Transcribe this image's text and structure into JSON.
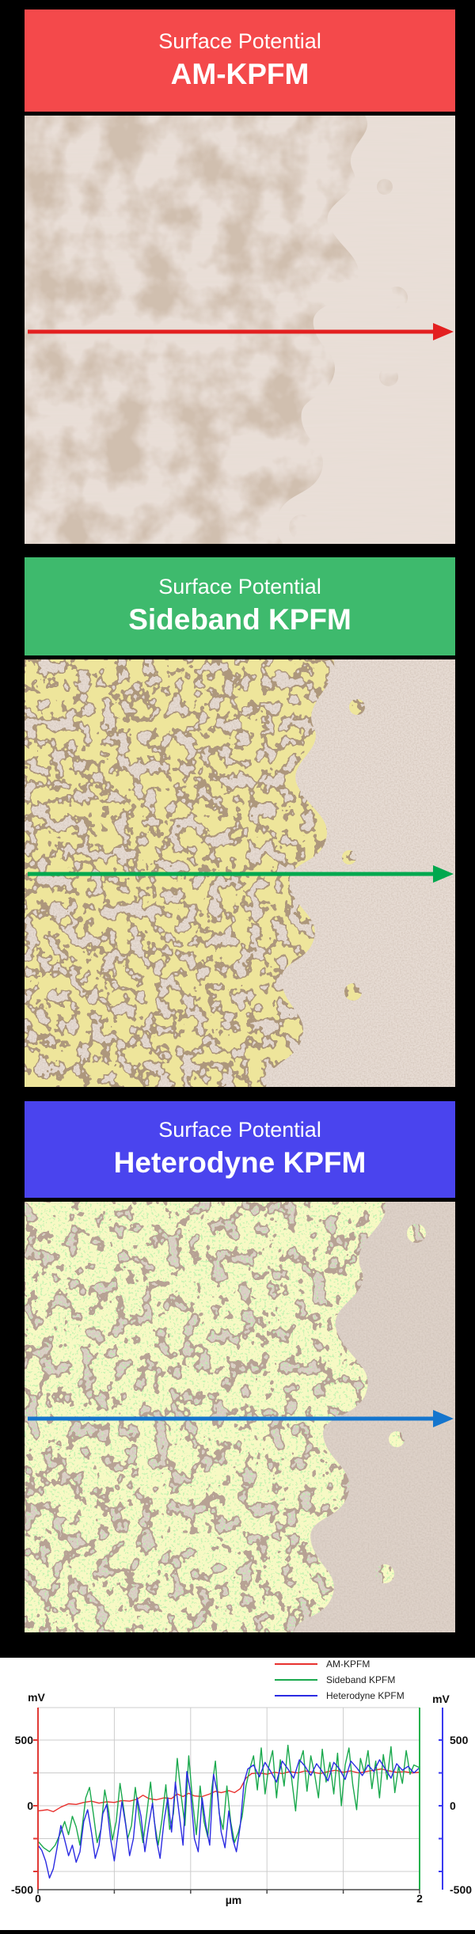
{
  "panels": [
    {
      "title_line1": "Surface Potential",
      "title_line2": "AM-KPFM",
      "banner_color": "#f4494b",
      "arrow_color": "#e32020"
    },
    {
      "title_line1": "Surface Potential",
      "title_line2": "Sideband KPFM",
      "banner_color": "#3eba6d",
      "arrow_color": "#00a84e"
    },
    {
      "title_line1": "Surface Potential",
      "title_line2": "Heterodyne KPFM",
      "banner_color": "#4a44ee",
      "arrow_color": "#1475cd"
    }
  ],
  "chart_data": {
    "type": "line",
    "xlabel": "µm",
    "ylabel_left": "mV",
    "ylabel_right": "mV",
    "xlim": [
      0,
      2
    ],
    "x_tick_labels": [
      "0",
      "2"
    ],
    "x_grid_step_um": 0.4,
    "y_tick_labels": [
      "500",
      "0",
      "-500"
    ],
    "y_grid_step_mv": 250,
    "ylim": [
      -650,
      760
    ],
    "grid": true,
    "legend_position": "top-right",
    "axis_colors": {
      "left_axis": "#e03a36",
      "right_axis": "#22b14c",
      "outer_right_axis": "#3a3af0",
      "baseline": "#4a4a4a"
    },
    "series": [
      {
        "name": "AM-KPFM",
        "color": "#e8312e",
        "points": [
          [
            0,
            -40
          ],
          [
            0.05,
            -30
          ],
          [
            0.08,
            -45
          ],
          [
            0.12,
            -10
          ],
          [
            0.16,
            15
          ],
          [
            0.2,
            10
          ],
          [
            0.24,
            25
          ],
          [
            0.28,
            35
          ],
          [
            0.32,
            20
          ],
          [
            0.36,
            30
          ],
          [
            0.4,
            25
          ],
          [
            0.44,
            40
          ],
          [
            0.48,
            35
          ],
          [
            0.52,
            50
          ],
          [
            0.55,
            80
          ],
          [
            0.58,
            55
          ],
          [
            0.62,
            45
          ],
          [
            0.66,
            60
          ],
          [
            0.7,
            55
          ],
          [
            0.73,
            90
          ],
          [
            0.76,
            70
          ],
          [
            0.79,
            95
          ],
          [
            0.82,
            75
          ],
          [
            0.86,
            70
          ],
          [
            0.9,
            90
          ],
          [
            0.93,
            110
          ],
          [
            0.96,
            100
          ],
          [
            1.0,
            115
          ],
          [
            1.03,
            100
          ],
          [
            1.06,
            130
          ],
          [
            1.09,
            210
          ],
          [
            1.12,
            245
          ],
          [
            1.16,
            250
          ],
          [
            1.2,
            240
          ],
          [
            1.24,
            255
          ],
          [
            1.28,
            245
          ],
          [
            1.32,
            260
          ],
          [
            1.36,
            250
          ],
          [
            1.4,
            265
          ],
          [
            1.44,
            255
          ],
          [
            1.48,
            245
          ],
          [
            1.52,
            260
          ],
          [
            1.56,
            270
          ],
          [
            1.6,
            255
          ],
          [
            1.64,
            265
          ],
          [
            1.68,
            250
          ],
          [
            1.72,
            260
          ],
          [
            1.76,
            270
          ],
          [
            1.8,
            280
          ],
          [
            1.84,
            265
          ],
          [
            1.88,
            255
          ],
          [
            1.92,
            260
          ],
          [
            1.96,
            250
          ],
          [
            2.0,
            255
          ]
        ]
      },
      {
        "name": "Sideband KPFM",
        "color": "#1aa94d",
        "points": [
          [
            0,
            -270
          ],
          [
            0.03,
            -320
          ],
          [
            0.06,
            -350
          ],
          [
            0.09,
            -300
          ],
          [
            0.12,
            -200
          ],
          [
            0.14,
            -120
          ],
          [
            0.16,
            -220
          ],
          [
            0.18,
            -80
          ],
          [
            0.2,
            -160
          ],
          [
            0.22,
            -300
          ],
          [
            0.25,
            60
          ],
          [
            0.27,
            140
          ],
          [
            0.29,
            -60
          ],
          [
            0.31,
            -280
          ],
          [
            0.33,
            -180
          ],
          [
            0.35,
            120
          ],
          [
            0.37,
            -40
          ],
          [
            0.39,
            -260
          ],
          [
            0.41,
            -120
          ],
          [
            0.43,
            170
          ],
          [
            0.45,
            -30
          ],
          [
            0.47,
            -250
          ],
          [
            0.49,
            -150
          ],
          [
            0.51,
            140
          ],
          [
            0.53,
            -80
          ],
          [
            0.55,
            -280
          ],
          [
            0.57,
            -60
          ],
          [
            0.59,
            180
          ],
          [
            0.61,
            -120
          ],
          [
            0.63,
            -300
          ],
          [
            0.65,
            -100
          ],
          [
            0.67,
            160
          ],
          [
            0.69,
            -180
          ],
          [
            0.71,
            -60
          ],
          [
            0.73,
            360
          ],
          [
            0.75,
            80
          ],
          [
            0.77,
            -150
          ],
          [
            0.79,
            380
          ],
          [
            0.81,
            40
          ],
          [
            0.83,
            -220
          ],
          [
            0.85,
            150
          ],
          [
            0.87,
            -120
          ],
          [
            0.89,
            -240
          ],
          [
            0.91,
            120
          ],
          [
            0.93,
            340
          ],
          [
            0.95,
            -60
          ],
          [
            0.97,
            -180
          ],
          [
            0.99,
            150
          ],
          [
            1.01,
            -120
          ],
          [
            1.03,
            -280
          ],
          [
            1.05,
            -200
          ],
          [
            1.07,
            -80
          ],
          [
            1.09,
            150
          ],
          [
            1.11,
            280
          ],
          [
            1.13,
            380
          ],
          [
            1.15,
            120
          ],
          [
            1.17,
            440
          ],
          [
            1.19,
            90
          ],
          [
            1.21,
            300
          ],
          [
            1.23,
            420
          ],
          [
            1.25,
            60
          ],
          [
            1.27,
            350
          ],
          [
            1.29,
            150
          ],
          [
            1.31,
            460
          ],
          [
            1.33,
            200
          ],
          [
            1.35,
            -40
          ],
          [
            1.37,
            320
          ],
          [
            1.39,
            420
          ],
          [
            1.41,
            110
          ],
          [
            1.43,
            380
          ],
          [
            1.45,
            240
          ],
          [
            1.47,
            60
          ],
          [
            1.49,
            430
          ],
          [
            1.51,
            180
          ],
          [
            1.53,
            330
          ],
          [
            1.55,
            90
          ],
          [
            1.57,
            400
          ],
          [
            1.59,
            0
          ],
          [
            1.61,
            310
          ],
          [
            1.63,
            440
          ],
          [
            1.65,
            160
          ],
          [
            1.67,
            -30
          ],
          [
            1.69,
            360
          ],
          [
            1.71,
            250
          ],
          [
            1.73,
            420
          ],
          [
            1.75,
            130
          ],
          [
            1.77,
            340
          ],
          [
            1.79,
            60
          ],
          [
            1.81,
            390
          ],
          [
            1.83,
            200
          ],
          [
            1.85,
            450
          ],
          [
            1.87,
            100
          ],
          [
            1.89,
            300
          ],
          [
            1.91,
            170
          ],
          [
            1.93,
            420
          ],
          [
            1.95,
            240
          ],
          [
            1.97,
            310
          ],
          [
            2.0,
            290
          ]
        ]
      },
      {
        "name": "Heterodyne KPFM",
        "color": "#2b2be2",
        "points": [
          [
            0,
            -300
          ],
          [
            0.02,
            -340
          ],
          [
            0.04,
            -420
          ],
          [
            0.06,
            -550
          ],
          [
            0.08,
            -480
          ],
          [
            0.1,
            -320
          ],
          [
            0.12,
            -150
          ],
          [
            0.14,
            -260
          ],
          [
            0.16,
            -380
          ],
          [
            0.18,
            -300
          ],
          [
            0.2,
            -430
          ],
          [
            0.22,
            -350
          ],
          [
            0.24,
            -120
          ],
          [
            0.26,
            -30
          ],
          [
            0.28,
            -200
          ],
          [
            0.3,
            -400
          ],
          [
            0.32,
            -300
          ],
          [
            0.34,
            -60
          ],
          [
            0.36,
            10
          ],
          [
            0.38,
            -250
          ],
          [
            0.4,
            -420
          ],
          [
            0.42,
            -200
          ],
          [
            0.44,
            30
          ],
          [
            0.46,
            -150
          ],
          [
            0.48,
            -380
          ],
          [
            0.5,
            -250
          ],
          [
            0.52,
            60
          ],
          [
            0.54,
            -80
          ],
          [
            0.56,
            -350
          ],
          [
            0.58,
            -150
          ],
          [
            0.6,
            20
          ],
          [
            0.62,
            -250
          ],
          [
            0.64,
            -400
          ],
          [
            0.66,
            -120
          ],
          [
            0.68,
            60
          ],
          [
            0.7,
            -200
          ],
          [
            0.72,
            180
          ],
          [
            0.74,
            -60
          ],
          [
            0.76,
            -300
          ],
          [
            0.78,
            260
          ],
          [
            0.8,
            100
          ],
          [
            0.82,
            -250
          ],
          [
            0.84,
            -350
          ],
          [
            0.86,
            60
          ],
          [
            0.88,
            -150
          ],
          [
            0.9,
            -300
          ],
          [
            0.92,
            240
          ],
          [
            0.94,
            100
          ],
          [
            0.96,
            -200
          ],
          [
            0.98,
            -320
          ],
          [
            1.0,
            -40
          ],
          [
            1.02,
            -250
          ],
          [
            1.04,
            -350
          ],
          [
            1.06,
            -150
          ],
          [
            1.08,
            180
          ],
          [
            1.1,
            280
          ],
          [
            1.13,
            310
          ],
          [
            1.16,
            220
          ],
          [
            1.19,
            330
          ],
          [
            1.22,
            260
          ],
          [
            1.25,
            180
          ],
          [
            1.28,
            340
          ],
          [
            1.31,
            280
          ],
          [
            1.34,
            210
          ],
          [
            1.37,
            350
          ],
          [
            1.4,
            300
          ],
          [
            1.43,
            230
          ],
          [
            1.46,
            320
          ],
          [
            1.49,
            260
          ],
          [
            1.52,
            190
          ],
          [
            1.55,
            330
          ],
          [
            1.58,
            280
          ],
          [
            1.61,
            200
          ],
          [
            1.64,
            340
          ],
          [
            1.67,
            290
          ],
          [
            1.7,
            230
          ],
          [
            1.73,
            310
          ],
          [
            1.76,
            260
          ],
          [
            1.79,
            350
          ],
          [
            1.82,
            280
          ],
          [
            1.85,
            210
          ],
          [
            1.88,
            320
          ],
          [
            1.91,
            270
          ],
          [
            1.94,
            300
          ],
          [
            1.97,
            250
          ],
          [
            2.0,
            290
          ]
        ]
      }
    ]
  }
}
